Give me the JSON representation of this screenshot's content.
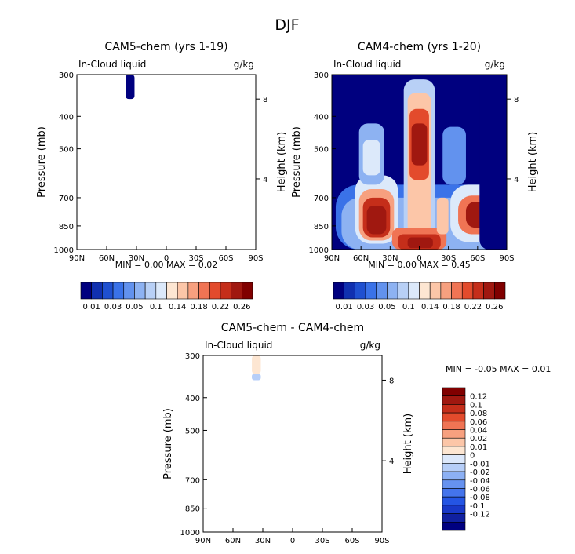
{
  "title": "DJF",
  "colors": {
    "main_scale": [
      "#00007f",
      "#1030b0",
      "#1f50d0",
      "#3a72e8",
      "#6292ee",
      "#8db2f2",
      "#b8d0f6",
      "#dce9fa",
      "#fde6d2",
      "#fcc6a8",
      "#f7a07f",
      "#f07454",
      "#e34b2c",
      "#c52e1a",
      "#a01810",
      "#800000"
    ],
    "diff_scale": [
      "#000080",
      "#1020a0",
      "#1838c8",
      "#2455e4",
      "#4474ec",
      "#6692f0",
      "#8cb0f4",
      "#b6cef8",
      "#dce8fb",
      "#fde6d2",
      "#fcc6a8",
      "#f7a07f",
      "#f07454",
      "#e34b2c",
      "#c52e1a",
      "#a01810",
      "#800000"
    ],
    "axis": "#000000"
  },
  "chart_data": [
    {
      "id": "cam5",
      "type": "heatmap",
      "title": "CAM5-chem (yrs 1-19)",
      "subtitle_left": "In-Cloud liquid",
      "subtitle_right": "g/kg",
      "ylabel": "Pressure (mb)",
      "ylabel_right": "Height (km)",
      "xticks": [
        "90N",
        "60N",
        "30N",
        "0",
        "30S",
        "60S",
        "90S"
      ],
      "yticks": [
        "300",
        "400",
        "500",
        "700",
        "850",
        "1000"
      ],
      "yticks_right": [
        "8",
        "4"
      ],
      "stats": "MIN =   0.00   MAX =   0.02",
      "colorbar_labels": [
        "0.01",
        "0.03",
        "0.05",
        "0.1",
        "0.14",
        "0.18",
        "0.22",
        "0.26"
      ],
      "xlim": [
        90,
        -90
      ],
      "ylim": [
        300,
        1000
      ],
      "blobs": [
        {
          "lat_from": 41,
          "lat_to": 32,
          "p_from": 300,
          "p_to": 355,
          "level": 0
        }
      ]
    },
    {
      "id": "cam4",
      "type": "heatmap",
      "title": "CAM4-chem (yrs 1-20)",
      "subtitle_left": "In-Cloud liquid",
      "subtitle_right": "g/kg",
      "ylabel": "Pressure (mb)",
      "ylabel_right": "Height (km)",
      "xticks": [
        "90N",
        "60N",
        "30N",
        "0",
        "30S",
        "60S",
        "90S"
      ],
      "yticks": [
        "300",
        "400",
        "500",
        "700",
        "850",
        "1000"
      ],
      "yticks_right": [
        "8",
        "4"
      ],
      "stats": "MIN =   0.00   MAX =   0.45",
      "colorbar_labels": [
        "0.01",
        "0.03",
        "0.05",
        "0.1",
        "0.14",
        "0.18",
        "0.22",
        "0.26"
      ],
      "xlim": [
        90,
        -90
      ],
      "ylim": [
        300,
        1000
      ],
      "blobs": [
        {
          "lat_from": 90,
          "lat_to": -90,
          "p_from": 300,
          "p_to": 1000,
          "level": 0
        },
        {
          "lat_from": 86,
          "lat_to": -86,
          "p_from": 640,
          "p_to": 1000,
          "level": 3
        },
        {
          "lat_from": 80,
          "lat_to": -82,
          "p_from": 700,
          "p_to": 1000,
          "level": 5
        },
        {
          "lat_from": 66,
          "lat_to": 22,
          "p_from": 600,
          "p_to": 960,
          "level": 7
        },
        {
          "lat_from": 62,
          "lat_to": 26,
          "p_from": 660,
          "p_to": 940,
          "level": 10
        },
        {
          "lat_from": 58,
          "lat_to": 30,
          "p_from": 700,
          "p_to": 920,
          "level": 13
        },
        {
          "lat_from": 54,
          "lat_to": 34,
          "p_from": 740,
          "p_to": 900,
          "level": 14
        },
        {
          "lat_from": 62,
          "lat_to": 36,
          "p_from": 420,
          "p_to": 640,
          "level": 5
        },
        {
          "lat_from": 58,
          "lat_to": 40,
          "p_from": 470,
          "p_to": 600,
          "level": 7
        },
        {
          "lat_from": 16,
          "lat_to": -16,
          "p_from": 310,
          "p_to": 1000,
          "level": 6
        },
        {
          "lat_from": 12,
          "lat_to": -12,
          "p_from": 340,
          "p_to": 900,
          "level": 9
        },
        {
          "lat_from": 10,
          "lat_to": -10,
          "p_from": 380,
          "p_to": 620,
          "level": 12
        },
        {
          "lat_from": 8,
          "lat_to": -8,
          "p_from": 420,
          "p_to": 560,
          "level": 14
        },
        {
          "lat_from": 28,
          "lat_to": -28,
          "p_from": 860,
          "p_to": 1000,
          "level": 11
        },
        {
          "lat_from": 22,
          "lat_to": -22,
          "p_from": 900,
          "p_to": 1000,
          "level": 13
        },
        {
          "lat_from": 12,
          "lat_to": -14,
          "p_from": 920,
          "p_to": 990,
          "level": 14
        },
        {
          "lat_from": -24,
          "lat_to": -48,
          "p_from": 430,
          "p_to": 640,
          "level": 4
        },
        {
          "lat_from": -32,
          "lat_to": -84,
          "p_from": 640,
          "p_to": 950,
          "level": 7
        },
        {
          "lat_from": -40,
          "lat_to": -80,
          "p_from": 690,
          "p_to": 900,
          "level": 11
        },
        {
          "lat_from": -48,
          "lat_to": -76,
          "p_from": 720,
          "p_to": 860,
          "level": 14
        },
        {
          "lat_from": -18,
          "lat_to": -30,
          "p_from": 700,
          "p_to": 900,
          "level": 9
        },
        {
          "lat_from": -62,
          "lat_to": -90,
          "p_from": 300,
          "p_to": 1000,
          "level": 0
        }
      ]
    },
    {
      "id": "diff",
      "type": "heatmap",
      "title": "CAM5-chem - CAM4-chem",
      "subtitle_left": "In-Cloud liquid",
      "subtitle_right": "g/kg",
      "ylabel": "Pressure (mb)",
      "ylabel_right": "Height (km)",
      "xticks": [
        "90N",
        "60N",
        "30N",
        "0",
        "30S",
        "60S",
        "90S"
      ],
      "yticks": [
        "300",
        "400",
        "500",
        "700",
        "850",
        "1000"
      ],
      "yticks_right": [
        "8",
        "4"
      ],
      "stats": "MIN =  -0.05   MAX =   0.01",
      "colorbar_labels": [
        "0.12",
        "0.1",
        "0.08",
        "0.06",
        "0.04",
        "0.02",
        "0.01",
        "0",
        "-0.01",
        "-0.02",
        "-0.04",
        "-0.06",
        "-0.08",
        "-0.1",
        "-0.12"
      ],
      "xlim": [
        90,
        -90
      ],
      "ylim": [
        300,
        1000
      ],
      "blobs": [
        {
          "lat_from": 41,
          "lat_to": 32,
          "p_from": 300,
          "p_to": 340,
          "level": 9
        },
        {
          "lat_from": 41,
          "lat_to": 32,
          "p_from": 340,
          "p_to": 355,
          "level": 7
        }
      ]
    }
  ]
}
